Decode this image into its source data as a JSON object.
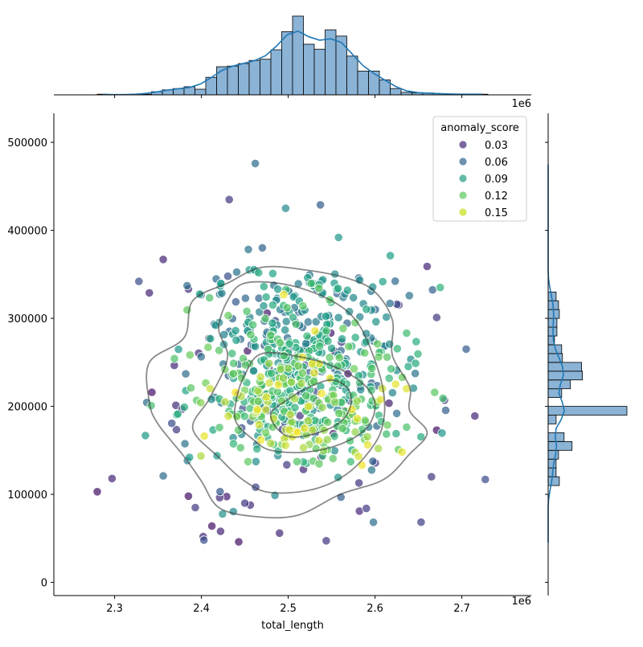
{
  "chart_data": {
    "type": "scatter",
    "subtype": "jointplot",
    "xlabel": "total_length",
    "ylabel": "",
    "x_offset_label": "1e6",
    "x_units_note": "x values in units of 1e6 as printed on axis",
    "xlim": [
      2.23,
      2.78
    ],
    "ylim": [
      -15000,
      533000
    ],
    "x_ticks": [
      2.3,
      2.4,
      2.5,
      2.6,
      2.7
    ],
    "x_tick_labels": [
      "2.3",
      "2.4",
      "2.5",
      "2.6",
      "2.7"
    ],
    "y_ticks": [
      0,
      100000,
      200000,
      300000,
      400000,
      500000
    ],
    "y_tick_labels": [
      "0",
      "100000",
      "200000",
      "300000",
      "400000",
      "500000"
    ],
    "grid": false,
    "legend": {
      "title": "anomaly_score",
      "placement": "top-right",
      "entries": [
        {
          "label": "0.03",
          "color": "#472d7b"
        },
        {
          "label": "0.06",
          "color": "#31668e"
        },
        {
          "label": "0.09",
          "color": "#26a085"
        },
        {
          "label": "0.12",
          "color": "#5ec962"
        },
        {
          "label": "0.15",
          "color": "#c8e020"
        }
      ]
    },
    "colormap": "viridis",
    "hue_range": [
      0.02,
      0.17
    ],
    "point_sample": [
      {
        "x": 2.28,
        "y": 103000,
        "score": 0.03
      },
      {
        "x": 2.297,
        "y": 118000,
        "score": 0.04
      },
      {
        "x": 2.328,
        "y": 342000,
        "score": 0.06
      },
      {
        "x": 2.34,
        "y": 329000,
        "score": 0.04
      },
      {
        "x": 2.343,
        "y": 216000,
        "score": 0.03
      },
      {
        "x": 2.356,
        "y": 367000,
        "score": 0.04
      },
      {
        "x": 2.356,
        "y": 121000,
        "score": 0.08
      },
      {
        "x": 2.385,
        "y": 98000,
        "score": 0.03
      },
      {
        "x": 2.393,
        "y": 85000,
        "score": 0.05
      },
      {
        "x": 2.402,
        "y": 52000,
        "score": 0.04
      },
      {
        "x": 2.412,
        "y": 64000,
        "score": 0.03
      },
      {
        "x": 2.422,
        "y": 58000,
        "score": 0.04
      },
      {
        "x": 2.432,
        "y": 435000,
        "score": 0.05
      },
      {
        "x": 2.443,
        "y": 46000,
        "score": 0.03
      },
      {
        "x": 2.462,
        "y": 476000,
        "score": 0.08
      },
      {
        "x": 2.49,
        "y": 56000,
        "score": 0.04
      },
      {
        "x": 2.497,
        "y": 425000,
        "score": 0.1
      },
      {
        "x": 2.537,
        "y": 429000,
        "score": 0.07
      },
      {
        "x": 2.558,
        "y": 392000,
        "score": 0.11
      },
      {
        "x": 2.66,
        "y": 359000,
        "score": 0.04
      },
      {
        "x": 2.671,
        "y": 301000,
        "score": 0.05
      },
      {
        "x": 2.705,
        "y": 265000,
        "score": 0.07
      },
      {
        "x": 2.715,
        "y": 189000,
        "score": 0.04
      },
      {
        "x": 2.727,
        "y": 117000,
        "score": 0.06
      },
      {
        "x": 2.68,
        "y": 207000,
        "score": 0.05
      },
      {
        "x": 2.671,
        "y": 173000,
        "score": 0.03
      },
      {
        "x": 2.665,
        "y": 120000,
        "score": 0.05
      },
      {
        "x": 2.45,
        "y": 90000,
        "score": 0.05
      },
      {
        "x": 2.582,
        "y": 81000,
        "score": 0.04
      },
      {
        "x": 2.59,
        "y": 84000,
        "score": 0.05
      }
    ],
    "x_histogram": {
      "bin_edges": [
        2.28,
        2.2925,
        2.305,
        2.3175,
        2.33,
        2.3425,
        2.355,
        2.3675,
        2.38,
        2.3925,
        2.405,
        2.4175,
        2.43,
        2.4425,
        2.455,
        2.4675,
        2.48,
        2.4925,
        2.505,
        2.5175,
        2.53,
        2.5425,
        2.555,
        2.5675,
        2.58,
        2.5925,
        2.605,
        2.6175,
        2.63,
        2.6425,
        2.655,
        2.6675,
        2.68,
        2.6925,
        2.705,
        2.7175,
        2.73
      ],
      "counts": [
        1,
        0,
        0,
        1,
        1,
        5,
        8,
        10,
        13,
        9,
        28,
        45,
        46,
        50,
        55,
        57,
        72,
        101,
        126,
        81,
        73,
        104,
        94,
        62,
        38,
        38,
        24,
        10,
        4,
        3,
        3,
        2,
        1,
        1,
        1,
        1
      ]
    },
    "y_histogram": {
      "bin_edges": [
        40000,
        50000,
        60000,
        70000,
        80000,
        90000,
        100000,
        110000,
        120000,
        130000,
        140000,
        150000,
        160000,
        170000,
        180000,
        190000,
        200000,
        210000,
        220000,
        230000,
        240000,
        250000,
        260000,
        270000,
        280000,
        290000,
        300000,
        310000,
        320000,
        330000,
        340000,
        350000,
        360000,
        370000,
        380000,
        390000,
        400000,
        410000,
        420000,
        430000,
        440000,
        450000,
        460000,
        470000,
        480000
      ],
      "counts": [
        0,
        0,
        0,
        0,
        0,
        0,
        0,
        14,
        10,
        10,
        13,
        30,
        20,
        0,
        10,
        99,
        0,
        17,
        28,
        43,
        42,
        18,
        17,
        8,
        11,
        11,
        14,
        13,
        10,
        0,
        0,
        0,
        0,
        0,
        0,
        0,
        0,
        0,
        0,
        0,
        0,
        0,
        0,
        0
      ]
    },
    "kde_contours": [
      [
        [
          2.43,
          340000
        ],
        [
          2.47,
          358000
        ],
        [
          2.52,
          355000
        ],
        [
          2.57,
          345000
        ],
        [
          2.6,
          330000
        ],
        [
          2.62,
          298000
        ],
        [
          2.62,
          258000
        ],
        [
          2.64,
          222000
        ],
        [
          2.64,
          195000
        ],
        [
          2.66,
          170000
        ],
        [
          2.64,
          146000
        ],
        [
          2.61,
          117000
        ],
        [
          2.56,
          100000
        ],
        [
          2.51,
          76000
        ],
        [
          2.46,
          75000
        ],
        [
          2.42,
          85000
        ],
        [
          2.4,
          115000
        ],
        [
          2.38,
          143000
        ],
        [
          2.35,
          180000
        ],
        [
          2.34,
          205000
        ],
        [
          2.34,
          250000
        ],
        [
          2.38,
          278000
        ],
        [
          2.39,
          320000
        ],
        [
          2.43,
          340000
        ]
      ],
      [
        [
          2.45,
          340000
        ],
        [
          2.5,
          338000
        ],
        [
          2.55,
          320000
        ],
        [
          2.58,
          295000
        ],
        [
          2.6,
          252000
        ],
        [
          2.61,
          215000
        ],
        [
          2.61,
          185000
        ],
        [
          2.6,
          158000
        ],
        [
          2.57,
          125000
        ],
        [
          2.53,
          106000
        ],
        [
          2.48,
          102000
        ],
        [
          2.45,
          115000
        ],
        [
          2.42,
          142000
        ],
        [
          2.39,
          175000
        ],
        [
          2.41,
          210000
        ],
        [
          2.43,
          255000
        ],
        [
          2.42,
          288000
        ],
        [
          2.43,
          320000
        ],
        [
          2.45,
          340000
        ]
      ],
      [
        [
          2.47,
          260000
        ],
        [
          2.52,
          255000
        ],
        [
          2.56,
          242000
        ],
        [
          2.59,
          222000
        ],
        [
          2.6,
          200000
        ],
        [
          2.59,
          175000
        ],
        [
          2.56,
          157000
        ],
        [
          2.52,
          148000
        ],
        [
          2.48,
          150000
        ],
        [
          2.46,
          162000
        ],
        [
          2.44,
          182000
        ],
        [
          2.44,
          206000
        ],
        [
          2.45,
          236000
        ],
        [
          2.47,
          260000
        ]
      ],
      [
        [
          2.52,
          220000
        ],
        [
          2.55,
          230000
        ],
        [
          2.57,
          218000
        ],
        [
          2.57,
          195000
        ],
        [
          2.55,
          176000
        ],
        [
          2.51,
          165000
        ],
        [
          2.49,
          172000
        ],
        [
          2.48,
          192000
        ],
        [
          2.5,
          208000
        ],
        [
          2.52,
          220000
        ]
      ]
    ]
  }
}
